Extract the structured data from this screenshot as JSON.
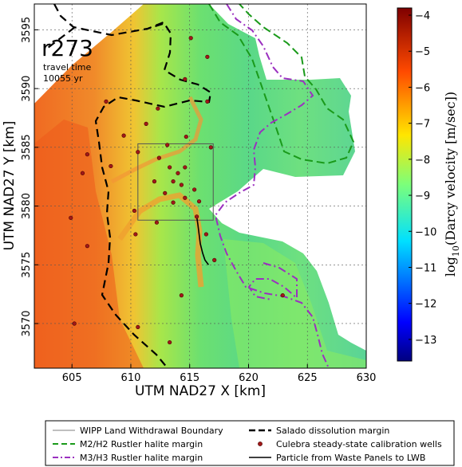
{
  "chart_data": {
    "type": "heatmap",
    "panel_label": "r273",
    "annotation_line1": "travel time",
    "annotation_line2": "10055 yr",
    "xlabel": "UTM NAD27 X [km]",
    "ylabel": "UTM NAD27 Y [km]",
    "colorbar_label": "log10(Darcy velocity [m/sec])",
    "colorbar_label_base": "log",
    "colorbar_label_sub": "10",
    "colorbar_label_rest": "(Darcy velocity [m/sec])",
    "xlim": [
      601.8,
      630
    ],
    "ylim": [
      3566.2,
      3597.2
    ],
    "xticks": [
      605,
      610,
      615,
      620,
      625,
      630
    ],
    "yticks": [
      3570,
      3575,
      3580,
      3585,
      3590,
      3595
    ],
    "xtick_labels": [
      "605",
      "610",
      "615",
      "620",
      "625",
      "630"
    ],
    "ytick_labels": [
      "3570",
      "3575",
      "3580",
      "3585",
      "3590",
      "3595"
    ],
    "colorbar_range": [
      -13.6,
      -3.8
    ],
    "colorbar_ticks": [
      -4,
      -5,
      -6,
      -7,
      -8,
      -9,
      -10,
      -11,
      -12,
      -13
    ],
    "colorbar_tick_labels": [
      "−4",
      "−5",
      "−6",
      "−7",
      "−8",
      "−9",
      "−10",
      "−11",
      "−12",
      "−13"
    ],
    "colormap": "jet",
    "grid": true,
    "wipp_boundary": {
      "x": [
        610.6,
        617.0
      ],
      "y": [
        3578.8,
        3585.3
      ]
    },
    "wells": [
      {
        "x": 605.2,
        "y": 3570.0
      },
      {
        "x": 606.3,
        "y": 3576.6
      },
      {
        "x": 604.9,
        "y": 3579.0
      },
      {
        "x": 605.9,
        "y": 3582.8
      },
      {
        "x": 606.3,
        "y": 3584.4
      },
      {
        "x": 607.9,
        "y": 3588.9
      },
      {
        "x": 608.3,
        "y": 3583.4
      },
      {
        "x": 609.4,
        "y": 3586.0
      },
      {
        "x": 610.6,
        "y": 3584.6
      },
      {
        "x": 610.3,
        "y": 3579.6
      },
      {
        "x": 610.4,
        "y": 3577.6
      },
      {
        "x": 612.2,
        "y": 3578.6
      },
      {
        "x": 611.3,
        "y": 3587.0
      },
      {
        "x": 612.3,
        "y": 3588.3
      },
      {
        "x": 613.1,
        "y": 3585.2
      },
      {
        "x": 612.4,
        "y": 3584.1
      },
      {
        "x": 613.3,
        "y": 3583.3
      },
      {
        "x": 612.0,
        "y": 3582.1
      },
      {
        "x": 612.9,
        "y": 3581.1
      },
      {
        "x": 613.6,
        "y": 3582.1
      },
      {
        "x": 614.0,
        "y": 3582.8
      },
      {
        "x": 614.6,
        "y": 3583.3
      },
      {
        "x": 614.3,
        "y": 3581.8
      },
      {
        "x": 613.6,
        "y": 3580.3
      },
      {
        "x": 614.6,
        "y": 3580.7
      },
      {
        "x": 615.4,
        "y": 3581.4
      },
      {
        "x": 615.8,
        "y": 3580.4
      },
      {
        "x": 615.6,
        "y": 3579.1
      },
      {
        "x": 616.8,
        "y": 3585.0
      },
      {
        "x": 614.7,
        "y": 3585.9
      },
      {
        "x": 616.4,
        "y": 3577.6
      },
      {
        "x": 617.1,
        "y": 3575.4
      },
      {
        "x": 614.3,
        "y": 3572.4
      },
      {
        "x": 613.3,
        "y": 3568.4
      },
      {
        "x": 610.6,
        "y": 3569.7
      },
      {
        "x": 614.6,
        "y": 3590.8
      },
      {
        "x": 616.5,
        "y": 3592.7
      },
      {
        "x": 615.1,
        "y": 3594.3
      },
      {
        "x": 622.9,
        "y": 3572.4
      },
      {
        "x": 616.5,
        "y": 3588.9
      }
    ],
    "particle_path": [
      [
        615.6,
        3579.1
      ],
      [
        615.7,
        3578.4
      ],
      [
        615.8,
        3577.6
      ],
      [
        615.9,
        3576.8
      ],
      [
        616.1,
        3576.0
      ],
      [
        616.3,
        3575.4
      ],
      [
        616.6,
        3575.0
      ]
    ],
    "legend": [
      {
        "label": "WIPP Land Withdrawal Boundary",
        "style": "thin-solid",
        "color": "#555555"
      },
      {
        "label": "M2/H2 Rustler halite margin",
        "style": "dashed",
        "color": "#1a9a1a"
      },
      {
        "label": "M3/H3 Rustler halite margin",
        "style": "dash-dot",
        "color": "#9b30c0"
      },
      {
        "label": "Salado dissolution margin",
        "style": "dashed-thick",
        "color": "#000000"
      },
      {
        "label": "Culebra steady-state calibration wells",
        "style": "marker",
        "color": "#a01818"
      },
      {
        "label": "Particle from Waste Panels to LWB",
        "style": "solid",
        "color": "#000000"
      }
    ],
    "legend_location": "bottom"
  }
}
